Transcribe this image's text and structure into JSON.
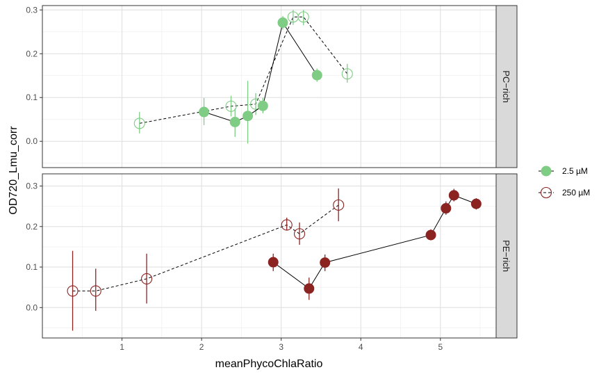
{
  "chart_data": {
    "type": "scatter",
    "xlabel": "meanPhycoChlaRatio",
    "ylabel": "OD720_Lmu_corr",
    "xlim": [
      0.0,
      5.7
    ],
    "x_ticks": [
      "1",
      "2",
      "3",
      "4",
      "5"
    ],
    "x_tick_values": [
      1,
      2,
      3,
      4,
      5
    ],
    "legend_position": "right",
    "legend": [
      {
        "label": "2.5 µM",
        "style": "filled"
      },
      {
        "label": "250 µM",
        "style": "open"
      }
    ],
    "panels": [
      {
        "strip": "PC−rich",
        "color": "#7fcc85",
        "ylim": [
          -0.06,
          0.31
        ],
        "y_ticks": [
          "0.0",
          "0.1",
          "0.2",
          "0.3"
        ],
        "y_tick_values": [
          0.0,
          0.1,
          0.2,
          0.3
        ],
        "series": [
          {
            "legend_index": 0,
            "points": [
              {
                "x": 2.03,
                "y": 0.067,
                "lo": 0.037,
                "hi": 0.099
              },
              {
                "x": 2.42,
                "y": 0.044,
                "lo": 0.01,
                "hi": 0.075
              },
              {
                "x": 2.58,
                "y": 0.058,
                "lo": -0.005,
                "hi": 0.138
              },
              {
                "x": 2.77,
                "y": 0.081,
                "lo": 0.064,
                "hi": 0.099
              },
              {
                "x": 3.02,
                "y": 0.271,
                "lo": 0.255,
                "hi": 0.286
              },
              {
                "x": 3.45,
                "y": 0.151,
                "lo": 0.136,
                "hi": 0.166
              }
            ]
          },
          {
            "legend_index": 1,
            "points": [
              {
                "x": 1.22,
                "y": 0.041,
                "lo": 0.018,
                "hi": 0.067
              },
              {
                "x": 2.37,
                "y": 0.08,
                "lo": 0.057,
                "hi": 0.104
              },
              {
                "x": 2.68,
                "y": 0.085,
                "lo": 0.06,
                "hi": 0.11
              },
              {
                "x": 3.15,
                "y": 0.284,
                "lo": 0.266,
                "hi": 0.3
              },
              {
                "x": 3.28,
                "y": 0.284,
                "lo": 0.265,
                "hi": 0.3
              },
              {
                "x": 3.83,
                "y": 0.154,
                "lo": 0.134,
                "hi": 0.177
              }
            ]
          }
        ]
      },
      {
        "strip": "PE−rich",
        "color": "#8b2321",
        "ylim": [
          -0.075,
          0.33
        ],
        "y_ticks": [
          "0.0",
          "0.1",
          "0.2",
          "0.3"
        ],
        "y_tick_values": [
          0.0,
          0.1,
          0.2,
          0.3
        ],
        "series": [
          {
            "legend_index": 0,
            "points": [
              {
                "x": 2.9,
                "y": 0.112,
                "lo": 0.09,
                "hi": 0.133
              },
              {
                "x": 3.35,
                "y": 0.047,
                "lo": 0.019,
                "hi": 0.074
              },
              {
                "x": 3.55,
                "y": 0.111,
                "lo": 0.09,
                "hi": 0.131
              },
              {
                "x": 4.88,
                "y": 0.179,
                "lo": 0.166,
                "hi": 0.193
              },
              {
                "x": 5.07,
                "y": 0.245,
                "lo": 0.229,
                "hi": 0.262
              },
              {
                "x": 5.17,
                "y": 0.277,
                "lo": 0.262,
                "hi": 0.293
              },
              {
                "x": 5.45,
                "y": 0.256,
                "lo": 0.242,
                "hi": 0.27
              }
            ]
          },
          {
            "legend_index": 1,
            "points": [
              {
                "x": 0.38,
                "y": 0.041,
                "lo": -0.057,
                "hi": 0.14
              },
              {
                "x": 0.67,
                "y": 0.041,
                "lo": -0.008,
                "hi": 0.096
              },
              {
                "x": 1.31,
                "y": 0.071,
                "lo": 0.01,
                "hi": 0.133
              },
              {
                "x": 3.07,
                "y": 0.204,
                "lo": 0.19,
                "hi": 0.222
              },
              {
                "x": 3.23,
                "y": 0.182,
                "lo": 0.155,
                "hi": 0.21
              },
              {
                "x": 3.72,
                "y": 0.253,
                "lo": 0.213,
                "hi": 0.294
              }
            ]
          }
        ]
      }
    ]
  }
}
